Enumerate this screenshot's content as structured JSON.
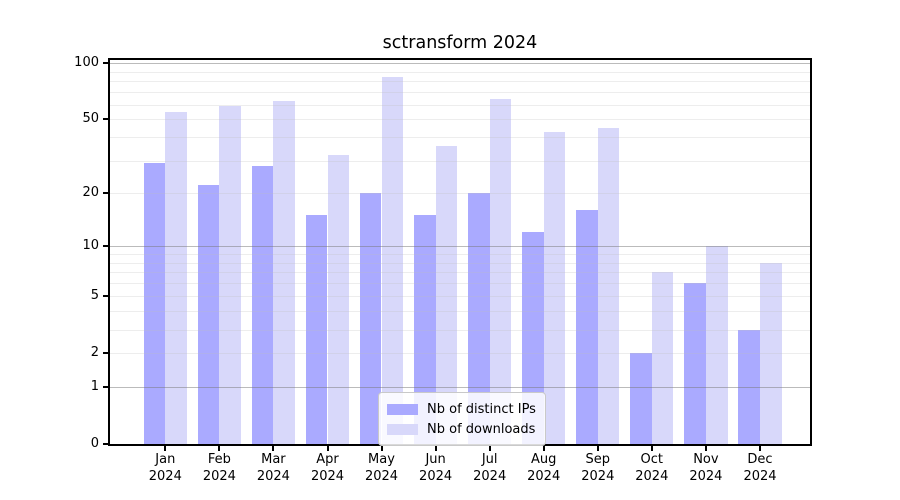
{
  "chart_data": {
    "type": "bar",
    "title": "sctransform 2024",
    "categories": [
      "Jan",
      "Feb",
      "Mar",
      "Apr",
      "May",
      "Jun",
      "Jul",
      "Aug",
      "Sep",
      "Oct",
      "Nov",
      "Dec"
    ],
    "category_year": "2024",
    "series": [
      {
        "name": "Nb of distinct IPs",
        "color": "#aaaaff",
        "values": [
          29,
          22,
          28,
          15,
          20,
          15,
          20,
          12,
          16,
          2,
          6,
          3
        ]
      },
      {
        "name": "Nb of downloads",
        "color": "#d8d8fa",
        "values": [
          55,
          59,
          63,
          32,
          84,
          36,
          64,
          43,
          45,
          7,
          10,
          8
        ]
      }
    ],
    "xlabel": "",
    "ylabel": "",
    "y_axis": {
      "scale": "log10(value+1)",
      "range": [
        0,
        100
      ],
      "tick_labels": [
        100,
        50,
        20,
        10,
        5,
        2,
        1,
        0
      ],
      "major_gridlines": [
        1,
        10,
        100
      ],
      "minor_gridlines": [
        2,
        3,
        4,
        5,
        6,
        7,
        8,
        9,
        20,
        30,
        40,
        50,
        60,
        70,
        80,
        90
      ]
    },
    "grid": true,
    "legend_position": "bottom-center",
    "colors": {
      "background": "#ffffff",
      "axis": "#000000",
      "major_grid": "#b5b5b5",
      "minor_grid": "#ececec",
      "text": "#000000"
    }
  }
}
